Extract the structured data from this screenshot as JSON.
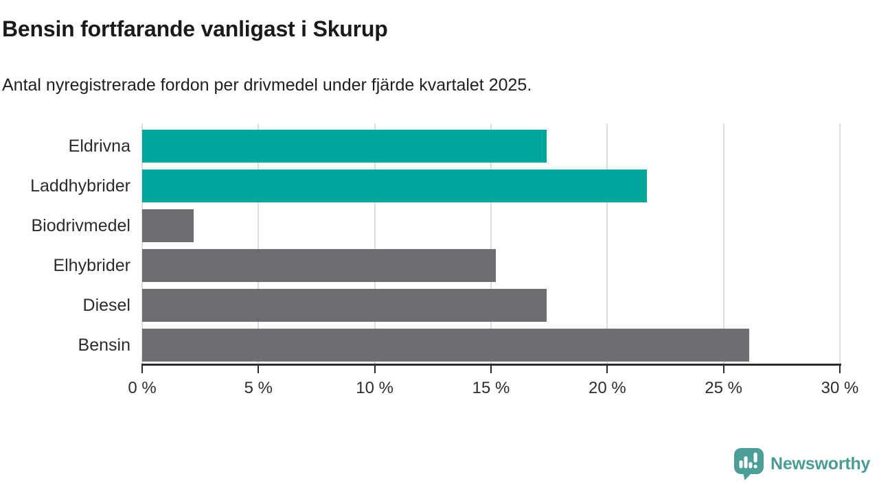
{
  "header": {
    "title": "Bensin fortfarande vanligast i Skurup",
    "subtitle": "Antal nyregistrerade fordon per drivmedel under fjärde kvartalet 2025."
  },
  "chart_data": {
    "type": "bar",
    "orientation": "horizontal",
    "title": "Bensin fortfarande vanligast i Skurup",
    "subtitle": "Antal nyregistrerade fordon per drivmedel under fjärde kvartalet 2025.",
    "categories": [
      "Eldrivna",
      "Laddhybrider",
      "Biodrivmedel",
      "Elhybrider",
      "Diesel",
      "Bensin"
    ],
    "values": [
      17.4,
      21.7,
      2.2,
      15.2,
      17.4,
      26.1
    ],
    "unit": "%",
    "xlim": [
      0,
      30
    ],
    "x_ticks": [
      0,
      5,
      10,
      15,
      20,
      25,
      30
    ],
    "x_tick_suffix": " %",
    "grid": true,
    "legend": "none",
    "bar_colors": [
      "#00a69b",
      "#00a69b",
      "#6e6d72",
      "#6e6d72",
      "#6e6d72",
      "#6e6d72"
    ],
    "highlight_color": "#00a69b",
    "default_color": "#6e6d72",
    "gridline_color": "#dcdcdc",
    "axis_color": "#2b2b2b"
  },
  "footer": {
    "brand": "Newsworthy",
    "brand_color": "#4a9b95"
  }
}
